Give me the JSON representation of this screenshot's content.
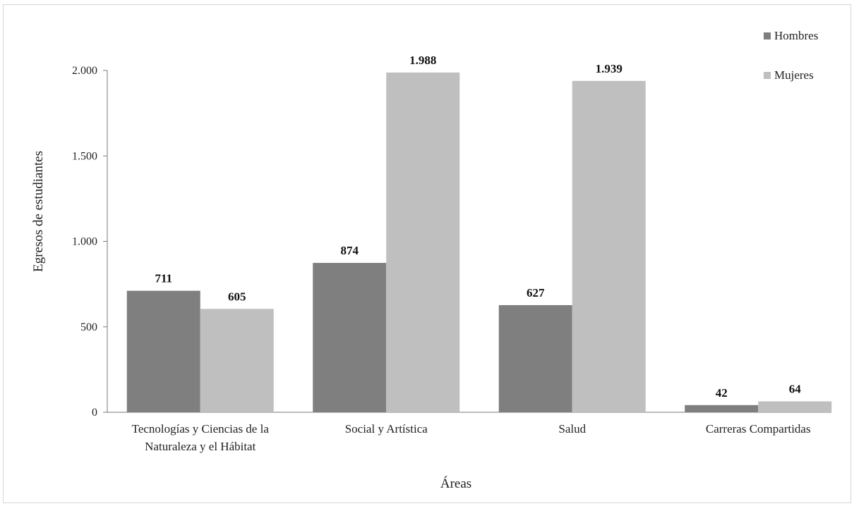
{
  "chart_data": {
    "type": "bar",
    "title": "",
    "xlabel": "Áreas",
    "ylabel": "Egresos de estudiantes",
    "ylim": [
      0,
      2000
    ],
    "yticks": [
      0,
      500,
      1000,
      1500,
      2000
    ],
    "ytick_labels": [
      "0",
      "500",
      "1.000",
      "1.500",
      "2.000"
    ],
    "grid": false,
    "legend_position": "top-right",
    "categories": [
      [
        "Tecnologías y Ciencias de la",
        "Naturaleza y el Hábitat"
      ],
      [
        "Social y Artística"
      ],
      [
        "Salud"
      ],
      [
        "Carreras Compartidas"
      ]
    ],
    "series": [
      {
        "name": "Hombres",
        "color": "#7f7f7f",
        "values": [
          711,
          874,
          627,
          42
        ],
        "labels": [
          "711",
          "874",
          "627",
          "42"
        ]
      },
      {
        "name": "Mujeres",
        "color": "#bfbfbf",
        "values": [
          605,
          1988,
          1939,
          64
        ],
        "labels": [
          "605",
          "1.988",
          "1.939",
          "64"
        ]
      }
    ]
  }
}
